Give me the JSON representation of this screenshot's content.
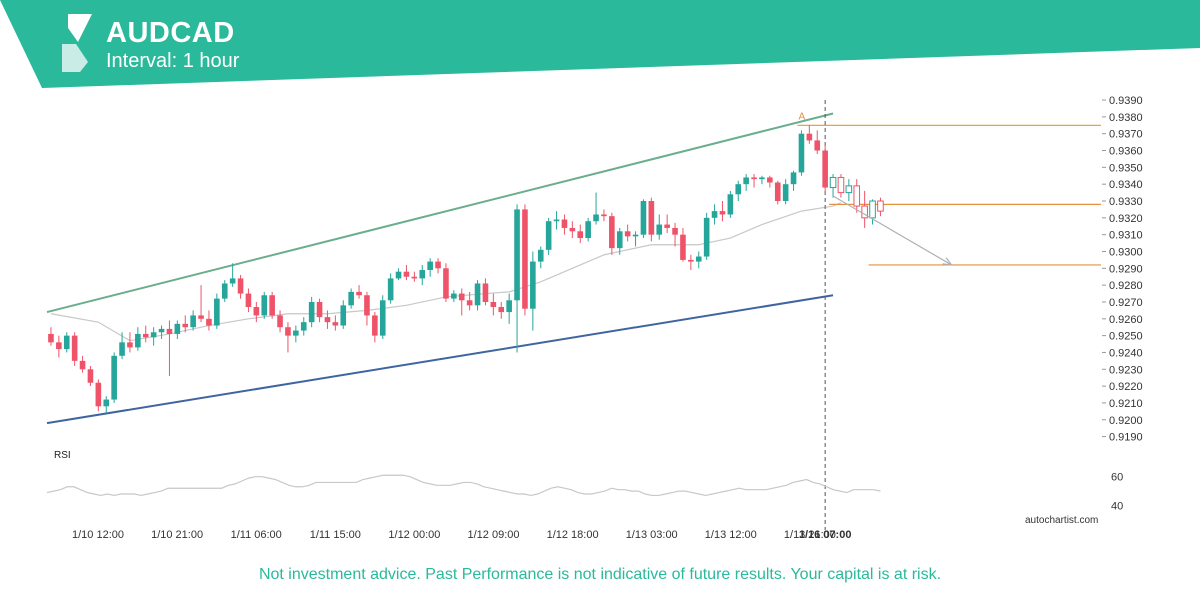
{
  "header": {
    "title": "AUDCAD",
    "subtitle": "Interval: 1 hour",
    "logo_icon": "autochartist-logo-icon"
  },
  "colors": {
    "header_bg": "#2ab99a",
    "bull": "#26a69a",
    "bear": "#ef5369",
    "upper_channel": "#6aae8e",
    "lower_channel": "#3f65a0",
    "target_line": "#e7913f",
    "moving_average": "#c8c8c8",
    "rsi_line": "#c8c8c8",
    "forecast_arrow": "#b0b0b0"
  },
  "footer": {
    "brand": "autochartist.com",
    "disclaimer": "Not investment advice. Past Performance is not indicative of future results. Your capital is at risk."
  },
  "chart_data": {
    "type": "candlestick",
    "title": "AUDCAD",
    "subtitle": "Interval: 1 hour",
    "ylim": [
      0.9185,
      0.9393
    ],
    "y_ticks": [
      "0.9190",
      "0.9200",
      "0.9210",
      "0.9220",
      "0.9230",
      "0.9240",
      "0.9250",
      "0.9260",
      "0.9270",
      "0.9280",
      "0.9290",
      "0.9300",
      "0.9310",
      "0.9320",
      "0.9330",
      "0.9340",
      "0.9350",
      "0.9360",
      "0.9370",
      "0.9380",
      "0.9390"
    ],
    "x_ticks": [
      "1/10 12:00",
      "1/10 21:00",
      "1/11 06:00",
      "1/11 15:00",
      "1/12 00:00",
      "1/12 09:00",
      "1/12 18:00",
      "1/13 03:00",
      "1/13 12:00",
      "1/13 21:00",
      "1/16 07:00"
    ],
    "highlight_x_tick": "1/16 07:00",
    "candles": [
      [
        0.9251,
        0.9255,
        0.9244,
        0.9246
      ],
      [
        0.9246,
        0.925,
        0.9237,
        0.9242
      ],
      [
        0.9242,
        0.9252,
        0.924,
        0.925
      ],
      [
        0.925,
        0.9252,
        0.9232,
        0.9235
      ],
      [
        0.9235,
        0.9238,
        0.9228,
        0.923
      ],
      [
        0.923,
        0.9232,
        0.922,
        0.9222
      ],
      [
        0.9222,
        0.9224,
        0.9205,
        0.9208
      ],
      [
        0.9208,
        0.9214,
        0.9204,
        0.9212
      ],
      [
        0.9212,
        0.924,
        0.921,
        0.9238
      ],
      [
        0.9238,
        0.9252,
        0.9236,
        0.9246
      ],
      [
        0.9246,
        0.9252,
        0.924,
        0.9243
      ],
      [
        0.9243,
        0.9255,
        0.9241,
        0.9251
      ],
      [
        0.9251,
        0.9256,
        0.9246,
        0.9249
      ],
      [
        0.9249,
        0.9255,
        0.9244,
        0.9252
      ],
      [
        0.9252,
        0.9256,
        0.9248,
        0.9254
      ],
      [
        0.9254,
        0.9259,
        0.9226,
        0.9251
      ],
      [
        0.9251,
        0.9259,
        0.9248,
        0.9257
      ],
      [
        0.9257,
        0.9262,
        0.9252,
        0.9255
      ],
      [
        0.9255,
        0.9265,
        0.9253,
        0.9262
      ],
      [
        0.9262,
        0.928,
        0.9258,
        0.926
      ],
      [
        0.926,
        0.9265,
        0.9253,
        0.9256
      ],
      [
        0.9256,
        0.9275,
        0.9254,
        0.9272
      ],
      [
        0.9272,
        0.9283,
        0.927,
        0.9281
      ],
      [
        0.9281,
        0.9293,
        0.9279,
        0.9284
      ],
      [
        0.9284,
        0.9286,
        0.9272,
        0.9275
      ],
      [
        0.9275,
        0.9278,
        0.9264,
        0.9267
      ],
      [
        0.9267,
        0.927,
        0.9258,
        0.9262
      ],
      [
        0.9262,
        0.9276,
        0.926,
        0.9274
      ],
      [
        0.9274,
        0.9276,
        0.926,
        0.9262
      ],
      [
        0.9262,
        0.9265,
        0.9252,
        0.9255
      ],
      [
        0.9255,
        0.9258,
        0.924,
        0.925
      ],
      [
        0.925,
        0.9256,
        0.9246,
        0.9253
      ],
      [
        0.9253,
        0.9261,
        0.925,
        0.9258
      ],
      [
        0.9258,
        0.9273,
        0.9255,
        0.927
      ],
      [
        0.927,
        0.9272,
        0.9258,
        0.9261
      ],
      [
        0.9261,
        0.9265,
        0.9254,
        0.9258
      ],
      [
        0.9258,
        0.9262,
        0.9253,
        0.9256
      ],
      [
        0.9256,
        0.9271,
        0.9254,
        0.9268
      ],
      [
        0.9268,
        0.9278,
        0.9266,
        0.9276
      ],
      [
        0.9276,
        0.928,
        0.9272,
        0.9274
      ],
      [
        0.9274,
        0.9276,
        0.9256,
        0.9262
      ],
      [
        0.9262,
        0.9264,
        0.9246,
        0.925
      ],
      [
        0.925,
        0.9274,
        0.9248,
        0.9271
      ],
      [
        0.9271,
        0.9287,
        0.9269,
        0.9284
      ],
      [
        0.9284,
        0.929,
        0.9283,
        0.9288
      ],
      [
        0.9288,
        0.9292,
        0.9283,
        0.9285
      ],
      [
        0.9285,
        0.9288,
        0.9282,
        0.9284
      ],
      [
        0.9284,
        0.9292,
        0.928,
        0.9289
      ],
      [
        0.9289,
        0.9296,
        0.9285,
        0.9294
      ],
      [
        0.9294,
        0.9296,
        0.9287,
        0.929
      ],
      [
        0.929,
        0.9293,
        0.927,
        0.9272
      ],
      [
        0.9272,
        0.9277,
        0.927,
        0.9275
      ],
      [
        0.9275,
        0.9278,
        0.9262,
        0.9271
      ],
      [
        0.9271,
        0.9276,
        0.9265,
        0.9268
      ],
      [
        0.9268,
        0.9283,
        0.9265,
        0.9281
      ],
      [
        0.9281,
        0.9284,
        0.9268,
        0.927
      ],
      [
        0.927,
        0.9275,
        0.9262,
        0.9267
      ],
      [
        0.9267,
        0.927,
        0.926,
        0.9264
      ],
      [
        0.9264,
        0.9275,
        0.9257,
        0.9271
      ],
      [
        0.9271,
        0.9328,
        0.924,
        0.9325
      ],
      [
        0.9325,
        0.9328,
        0.9262,
        0.9266
      ],
      [
        0.9266,
        0.93,
        0.9253,
        0.9294
      ],
      [
        0.9294,
        0.9303,
        0.929,
        0.9301
      ],
      [
        0.9301,
        0.932,
        0.9298,
        0.9318
      ],
      [
        0.9318,
        0.9324,
        0.9313,
        0.9319
      ],
      [
        0.9319,
        0.9322,
        0.931,
        0.9314
      ],
      [
        0.9314,
        0.9318,
        0.9308,
        0.9312
      ],
      [
        0.9312,
        0.9316,
        0.9305,
        0.9308
      ],
      [
        0.9308,
        0.932,
        0.9306,
        0.9318
      ],
      [
        0.9318,
        0.9335,
        0.9316,
        0.9322
      ],
      [
        0.9322,
        0.9325,
        0.9318,
        0.9321
      ],
      [
        0.9321,
        0.9323,
        0.9298,
        0.9302
      ],
      [
        0.9302,
        0.9314,
        0.9298,
        0.9312
      ],
      [
        0.9312,
        0.9316,
        0.9306,
        0.9309
      ],
      [
        0.9309,
        0.9312,
        0.9303,
        0.931
      ],
      [
        0.931,
        0.9331,
        0.9308,
        0.933
      ],
      [
        0.933,
        0.9332,
        0.9306,
        0.931
      ],
      [
        0.931,
        0.9322,
        0.9307,
        0.9316
      ],
      [
        0.9316,
        0.9322,
        0.9311,
        0.9314
      ],
      [
        0.9314,
        0.9317,
        0.9303,
        0.931
      ],
      [
        0.931,
        0.9314,
        0.9294,
        0.9295
      ],
      [
        0.9295,
        0.9298,
        0.9289,
        0.9294
      ],
      [
        0.9294,
        0.93,
        0.929,
        0.9297
      ],
      [
        0.9297,
        0.9323,
        0.9295,
        0.932
      ],
      [
        0.932,
        0.9328,
        0.9316,
        0.9324
      ],
      [
        0.9324,
        0.933,
        0.9318,
        0.9322
      ],
      [
        0.9322,
        0.9336,
        0.932,
        0.9334
      ],
      [
        0.9334,
        0.9342,
        0.933,
        0.934
      ],
      [
        0.934,
        0.9346,
        0.9336,
        0.9344
      ],
      [
        0.9344,
        0.9346,
        0.9338,
        0.9343
      ],
      [
        0.9343,
        0.9345,
        0.934,
        0.9344
      ],
      [
        0.9344,
        0.9345,
        0.9338,
        0.9341
      ],
      [
        0.9341,
        0.9342,
        0.9328,
        0.933
      ],
      [
        0.933,
        0.9343,
        0.9328,
        0.934
      ],
      [
        0.934,
        0.9348,
        0.9336,
        0.9347
      ],
      [
        0.9347,
        0.9372,
        0.9345,
        0.937
      ],
      [
        0.937,
        0.9375,
        0.9364,
        0.9366
      ],
      [
        0.9366,
        0.9372,
        0.9358,
        0.936
      ],
      [
        0.936,
        0.9363,
        0.9335,
        0.9338
      ],
      [
        0.9338,
        0.9346,
        0.9332,
        0.9344
      ],
      [
        0.9344,
        0.9346,
        0.9332,
        0.9335
      ],
      [
        0.9335,
        0.9343,
        0.933,
        0.9339
      ],
      [
        0.9339,
        0.9343,
        0.9323,
        0.9327
      ],
      [
        0.9327,
        0.9336,
        0.9314,
        0.932
      ],
      [
        0.932,
        0.9331,
        0.9316,
        0.933
      ],
      [
        0.933,
        0.9332,
        0.9321,
        0.9324
      ]
    ],
    "solid_candle_count": 99,
    "moving_average_points": [
      [
        0,
        0.9263
      ],
      [
        6,
        0.9258
      ],
      [
        10,
        0.9247
      ],
      [
        15,
        0.9251
      ],
      [
        20,
        0.9256
      ],
      [
        25,
        0.926
      ],
      [
        30,
        0.9263
      ],
      [
        35,
        0.9263
      ],
      [
        40,
        0.9265
      ],
      [
        45,
        0.9268
      ],
      [
        50,
        0.9273
      ],
      [
        55,
        0.9275
      ],
      [
        58,
        0.9276
      ],
      [
        62,
        0.9282
      ],
      [
        66,
        0.929
      ],
      [
        70,
        0.9298
      ],
      [
        76,
        0.9304
      ],
      [
        82,
        0.9304
      ],
      [
        86,
        0.9308
      ],
      [
        90,
        0.9316
      ],
      [
        95,
        0.9324
      ],
      [
        99,
        0.9327
      ],
      [
        100,
        0.9329
      ]
    ],
    "upper_channel": {
      "start": [
        0,
        0.9264
      ],
      "end": [
        99,
        0.9382
      ]
    },
    "lower_channel": {
      "start": [
        0,
        0.9198
      ],
      "end": [
        99,
        0.9274
      ]
    },
    "pattern_point": {
      "label": "A",
      "index": 95,
      "value": 0.9375
    },
    "levels": [
      {
        "name": "pattern-level-top",
        "value": 0.9375,
        "from": 95
      },
      {
        "name": "pattern-level-breakout",
        "value": 0.9328,
        "from": 99
      },
      {
        "name": "forecast-target",
        "value": 0.9292,
        "from": 104
      }
    ],
    "forecast_arrow": {
      "from": [
        99,
        0.9333
      ],
      "to": [
        114,
        0.9292
      ]
    },
    "rsi": {
      "label": "RSI",
      "ticks": [
        "60",
        "40"
      ],
      "ylim": [
        30,
        75
      ],
      "values": [
        49,
        50,
        51,
        53,
        53,
        51,
        49,
        48,
        47,
        48,
        47,
        48,
        48,
        48,
        47,
        48,
        49,
        50,
        52,
        52,
        52,
        52,
        52,
        52,
        52,
        52,
        52,
        54,
        55,
        57,
        59,
        60,
        60,
        59,
        58,
        56,
        54,
        53,
        53,
        54,
        56,
        56,
        56,
        56,
        56,
        56,
        56,
        58,
        59,
        60,
        61,
        61,
        61,
        61,
        60,
        58,
        56,
        55,
        54,
        54,
        54,
        55,
        56,
        56,
        55,
        53,
        52,
        51,
        50,
        49,
        48,
        48,
        47,
        48,
        50,
        52,
        53,
        52,
        51,
        49,
        48,
        48,
        49,
        50,
        52,
        51,
        51,
        50,
        50,
        48,
        47,
        47,
        48,
        49,
        50,
        50,
        49,
        48,
        47,
        48,
        49,
        50,
        51,
        52,
        51,
        51,
        51,
        51,
        52,
        53,
        54,
        56,
        57,
        58,
        56,
        55,
        53,
        51,
        50,
        49,
        51,
        51,
        51,
        51,
        50
      ]
    }
  }
}
